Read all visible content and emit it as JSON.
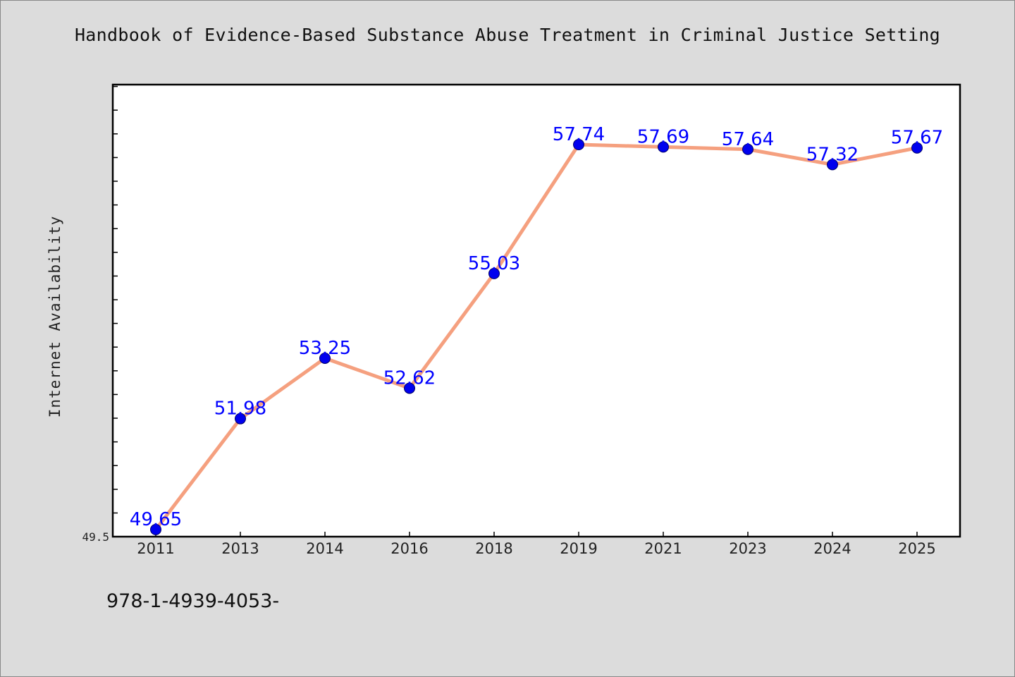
{
  "chart_data": {
    "type": "line",
    "title": "Handbook of Evidence-Based Substance Abuse Treatment in Criminal Justice Setting",
    "xlabel": "",
    "ylabel": "Internet Availability",
    "categories": [
      "2011",
      "2013",
      "2014",
      "2016",
      "2018",
      "2019",
      "2021",
      "2023",
      "2024",
      "2025"
    ],
    "series": [
      {
        "values": [
          49.65,
          51.98,
          53.25,
          52.62,
          55.03,
          57.74,
          57.69,
          57.64,
          57.32,
          57.67
        ],
        "labels": [
          "49.65",
          "51.98",
          "53.25",
          "52.62",
          "55.03",
          "57.74",
          "57.69",
          "57.64",
          "57.32",
          "57.67"
        ]
      }
    ],
    "y_tick_labels": [
      {
        "value": 49.5,
        "label": "49.5"
      }
    ],
    "ylim": [
      49.5,
      59.0
    ],
    "grid": false,
    "legend": "none",
    "colors": {
      "line": "#f5a07f",
      "marker": "#0000ee",
      "data_label": "#0000ff",
      "plot_bg": "#ffffff",
      "figure_bg": "#dcdcdc"
    }
  },
  "footnote": "978-1-4939-4053-"
}
